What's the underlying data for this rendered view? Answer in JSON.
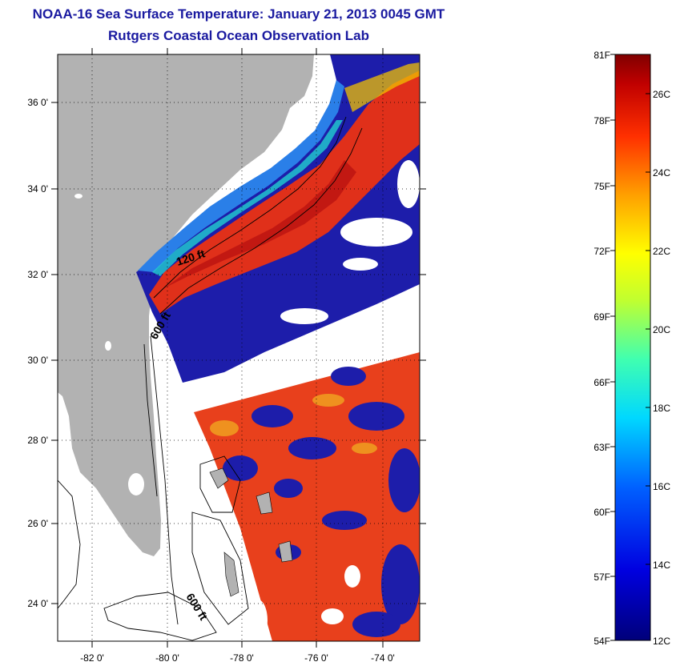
{
  "header": {
    "title": "NOAA-16 Sea Surface Temperature:  January 21, 2013 0045 GMT",
    "subtitle": "Rutgers Coastal Ocean Observation Lab"
  },
  "map": {
    "lat_ticks": [
      "36 0'",
      "34 0'",
      "32 0'",
      "30 0'",
      "28 0'",
      "26 0'",
      "24 0'"
    ],
    "lon_ticks": [
      "-82 0'",
      "-80 0'",
      "-78 0'",
      "-76 0'",
      "-74 0'"
    ],
    "contour_labels": [
      "120 ft",
      "600 ft",
      "600 ft"
    ],
    "colors": {
      "land": "#b2b2b2",
      "no_data": "#ffffff",
      "cold": "#1d1daa",
      "warm": "#e0301a"
    }
  },
  "colorbar": {
    "fahrenheit_labels": [
      "81F",
      "78F",
      "75F",
      "72F",
      "69F",
      "66F",
      "63F",
      "60F",
      "57F",
      "54F"
    ],
    "celsius_labels": [
      "26C",
      "24C",
      "22C",
      "20C",
      "18C",
      "16C",
      "14C",
      "12C"
    ],
    "range_f": [
      54,
      81
    ],
    "range_c": [
      12,
      27.2
    ]
  }
}
